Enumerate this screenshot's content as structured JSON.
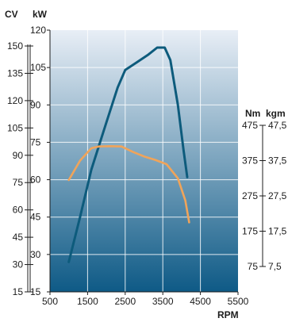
{
  "chart_data": {
    "type": "line",
    "title": "",
    "xlabel": "RPM",
    "x_ticks": [
      500,
      1500,
      2500,
      3500,
      4500,
      5500
    ],
    "xlim": [
      500,
      5500
    ],
    "kw_label": "kW",
    "kw_ticks": [
      15,
      30,
      45,
      60,
      75,
      90,
      105,
      120
    ],
    "ylim_kw": [
      15,
      120
    ],
    "cv_label": "CV",
    "cv_ticks": [
      15,
      30,
      45,
      60,
      75,
      90,
      105,
      120,
      135,
      150
    ],
    "nm_label": "Nm",
    "nm_ticks": [
      75,
      175,
      275,
      375,
      475
    ],
    "kgm_label": "kgm",
    "kgm_ticks": [
      "7,5",
      "17,5",
      "27,5",
      "37,5",
      "47,5"
    ],
    "grid": true,
    "colors": {
      "power": "#0d5b7c",
      "torque": "#f0a45a",
      "bg_top": "#e8eef6",
      "bg_bottom": "#0e5a86"
    },
    "series": [
      {
        "key": "power",
        "axis": "kW",
        "points": [
          [
            1000,
            27
          ],
          [
            1300,
            45
          ],
          [
            1600,
            64
          ],
          [
            2000,
            83
          ],
          [
            2300,
            97
          ],
          [
            2500,
            104
          ],
          [
            2800,
            107
          ],
          [
            3100,
            110
          ],
          [
            3350,
            113
          ],
          [
            3550,
            113
          ],
          [
            3700,
            108
          ],
          [
            3900,
            90
          ],
          [
            4050,
            72
          ],
          [
            4150,
            61
          ]
        ]
      },
      {
        "key": "torque",
        "axis": "Nm",
        "points": [
          [
            1000,
            320
          ],
          [
            1300,
            375
          ],
          [
            1600,
            410
          ],
          [
            1800,
            415
          ],
          [
            2100,
            416
          ],
          [
            2400,
            415
          ],
          [
            2700,
            400
          ],
          [
            3000,
            387
          ],
          [
            3300,
            377
          ],
          [
            3600,
            365
          ],
          [
            3900,
            325
          ],
          [
            4100,
            262
          ],
          [
            4200,
            200
          ]
        ]
      }
    ]
  }
}
